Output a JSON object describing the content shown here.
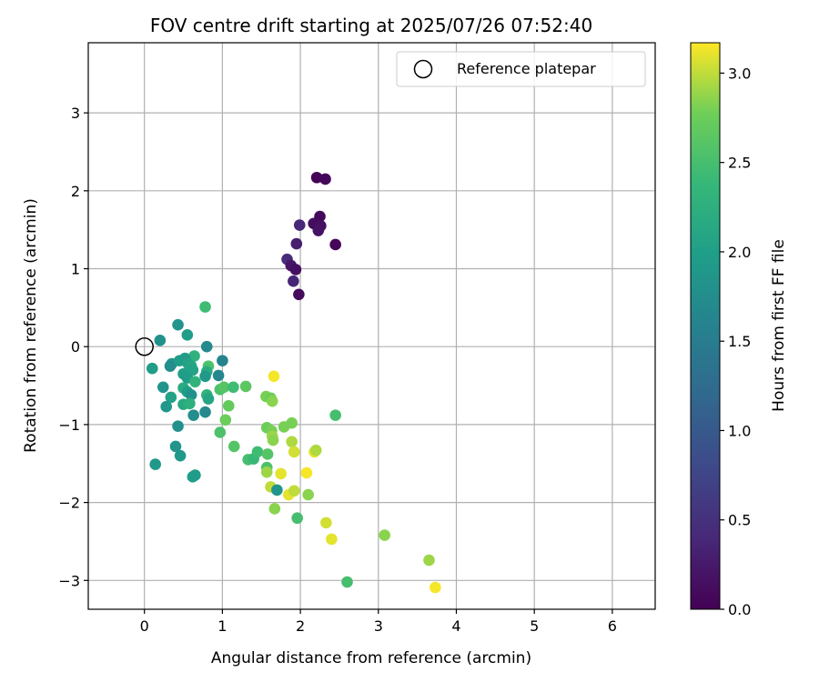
{
  "chart_data": {
    "type": "scatter",
    "title": "FOV centre drift starting at 2025/07/26 07:52:40",
    "xlabel": "Angular distance from reference (arcmin)",
    "ylabel": "Rotation from reference (arcmin)",
    "xlim": [
      -0.72,
      6.55
    ],
    "ylim": [
      -3.37,
      3.9
    ],
    "xticks": [
      0,
      1,
      2,
      3,
      4,
      5,
      6
    ],
    "yticks": [
      -3,
      -2,
      -1,
      0,
      1,
      2,
      3
    ],
    "grid": true,
    "legend": {
      "position": "top-right",
      "entries": [
        "Reference platepar"
      ]
    },
    "reference_point": {
      "x": 0,
      "y": 0
    },
    "colorbar": {
      "label": "Hours from first FF file",
      "colormap": "viridis",
      "range": [
        0.0,
        3.17
      ],
      "ticks": [
        0.0,
        0.5,
        1.0,
        1.5,
        2.0,
        2.5,
        3.0
      ]
    },
    "points": [
      {
        "x": 2.21,
        "y": 2.17,
        "c": 0.02
      },
      {
        "x": 2.32,
        "y": 2.15,
        "c": 0.06
      },
      {
        "x": 2.25,
        "y": 1.67,
        "c": 0.08
      },
      {
        "x": 2.17,
        "y": 1.58,
        "c": 0.12
      },
      {
        "x": 2.26,
        "y": 1.55,
        "c": 0.15
      },
      {
        "x": 2.23,
        "y": 1.49,
        "c": 0.18
      },
      {
        "x": 2.45,
        "y": 1.31,
        "c": 0.05
      },
      {
        "x": 1.99,
        "y": 1.56,
        "c": 0.4
      },
      {
        "x": 1.95,
        "y": 1.32,
        "c": 0.3
      },
      {
        "x": 1.83,
        "y": 1.12,
        "c": 0.45
      },
      {
        "x": 1.88,
        "y": 1.04,
        "c": 0.2
      },
      {
        "x": 1.94,
        "y": 0.99,
        "c": 0.15
      },
      {
        "x": 1.91,
        "y": 0.84,
        "c": 0.38
      },
      {
        "x": 1.98,
        "y": 0.67,
        "c": 0.1
      },
      {
        "x": 0.2,
        "y": 0.08,
        "c": 1.8
      },
      {
        "x": 0.1,
        "y": -0.28,
        "c": 1.95
      },
      {
        "x": 0.43,
        "y": 0.28,
        "c": 1.85
      },
      {
        "x": 0.55,
        "y": 0.15,
        "c": 1.95
      },
      {
        "x": 0.78,
        "y": 0.51,
        "c": 2.45
      },
      {
        "x": 0.64,
        "y": -0.12,
        "c": 2.3
      },
      {
        "x": 0.8,
        "y": 0.0,
        "c": 1.7
      },
      {
        "x": 0.35,
        "y": -0.22,
        "c": 1.9
      },
      {
        "x": 0.33,
        "y": -0.25,
        "c": 1.75
      },
      {
        "x": 0.45,
        "y": -0.18,
        "c": 2.0
      },
      {
        "x": 0.52,
        "y": -0.15,
        "c": 1.95
      },
      {
        "x": 0.56,
        "y": -0.22,
        "c": 2.05
      },
      {
        "x": 0.6,
        "y": -0.25,
        "c": 2.1
      },
      {
        "x": 0.5,
        "y": -0.35,
        "c": 2.0
      },
      {
        "x": 0.62,
        "y": -0.3,
        "c": 2.05
      },
      {
        "x": 0.55,
        "y": -0.4,
        "c": 1.95
      },
      {
        "x": 0.82,
        "y": -0.25,
        "c": 2.55
      },
      {
        "x": 0.8,
        "y": -0.32,
        "c": 2.2
      },
      {
        "x": 0.78,
        "y": -0.38,
        "c": 1.9
      },
      {
        "x": 1.0,
        "y": -0.18,
        "c": 1.6
      },
      {
        "x": 0.95,
        "y": -0.37,
        "c": 1.65
      },
      {
        "x": 0.65,
        "y": -0.45,
        "c": 2.3
      },
      {
        "x": 0.24,
        "y": -0.52,
        "c": 1.85
      },
      {
        "x": 0.5,
        "y": -0.53,
        "c": 2.2
      },
      {
        "x": 0.55,
        "y": -0.58,
        "c": 2.0
      },
      {
        "x": 0.6,
        "y": -0.62,
        "c": 1.8
      },
      {
        "x": 0.34,
        "y": -0.65,
        "c": 2.05
      },
      {
        "x": 0.28,
        "y": -0.77,
        "c": 1.9
      },
      {
        "x": 0.5,
        "y": -0.74,
        "c": 2.15
      },
      {
        "x": 0.58,
        "y": -0.73,
        "c": 2.25
      },
      {
        "x": 0.8,
        "y": -0.62,
        "c": 2.3
      },
      {
        "x": 0.82,
        "y": -0.67,
        "c": 2.1
      },
      {
        "x": 0.78,
        "y": -0.84,
        "c": 1.7
      },
      {
        "x": 0.63,
        "y": -0.88,
        "c": 1.75
      },
      {
        "x": 0.43,
        "y": -1.02,
        "c": 1.8
      },
      {
        "x": 0.4,
        "y": -1.28,
        "c": 1.85
      },
      {
        "x": 0.46,
        "y": -1.4,
        "c": 1.9
      },
      {
        "x": 0.14,
        "y": -1.51,
        "c": 1.9
      },
      {
        "x": 0.62,
        "y": -1.67,
        "c": 2.0
      },
      {
        "x": 0.65,
        "y": -1.65,
        "c": 1.95
      },
      {
        "x": 0.97,
        "y": -0.55,
        "c": 2.55
      },
      {
        "x": 1.02,
        "y": -0.52,
        "c": 2.6
      },
      {
        "x": 1.14,
        "y": -0.52,
        "c": 2.45
      },
      {
        "x": 1.3,
        "y": -0.51,
        "c": 2.65
      },
      {
        "x": 1.08,
        "y": -0.76,
        "c": 2.7
      },
      {
        "x": 1.04,
        "y": -0.94,
        "c": 2.75
      },
      {
        "x": 0.97,
        "y": -1.1,
        "c": 2.55
      },
      {
        "x": 1.15,
        "y": -1.28,
        "c": 2.6
      },
      {
        "x": 1.33,
        "y": -1.45,
        "c": 2.5
      },
      {
        "x": 1.4,
        "y": -1.44,
        "c": 2.4
      },
      {
        "x": 1.45,
        "y": -1.35,
        "c": 2.45
      },
      {
        "x": 1.56,
        "y": -0.64,
        "c": 2.8
      },
      {
        "x": 1.62,
        "y": -0.66,
        "c": 2.75
      },
      {
        "x": 1.64,
        "y": -0.7,
        "c": 2.85
      },
      {
        "x": 1.66,
        "y": -0.38,
        "c": 3.15
      },
      {
        "x": 1.57,
        "y": -1.04,
        "c": 2.75
      },
      {
        "x": 1.63,
        "y": -1.08,
        "c": 2.8
      },
      {
        "x": 1.64,
        "y": -1.15,
        "c": 2.9
      },
      {
        "x": 1.65,
        "y": -1.2,
        "c": 2.85
      },
      {
        "x": 1.79,
        "y": -1.03,
        "c": 2.8
      },
      {
        "x": 1.89,
        "y": -0.98,
        "c": 2.8
      },
      {
        "x": 1.89,
        "y": -1.22,
        "c": 2.95
      },
      {
        "x": 1.92,
        "y": -1.35,
        "c": 3.05
      },
      {
        "x": 1.58,
        "y": -1.38,
        "c": 2.6
      },
      {
        "x": 1.57,
        "y": -1.55,
        "c": 2.55
      },
      {
        "x": 1.57,
        "y": -1.61,
        "c": 2.9
      },
      {
        "x": 1.62,
        "y": -1.8,
        "c": 3.0
      },
      {
        "x": 1.7,
        "y": -1.84,
        "c": 1.85
      },
      {
        "x": 1.75,
        "y": -1.63,
        "c": 3.1
      },
      {
        "x": 1.85,
        "y": -1.9,
        "c": 3.1
      },
      {
        "x": 1.92,
        "y": -1.85,
        "c": 3.0
      },
      {
        "x": 2.08,
        "y": -1.62,
        "c": 3.15
      },
      {
        "x": 2.18,
        "y": -1.35,
        "c": 3.1
      },
      {
        "x": 2.2,
        "y": -1.33,
        "c": 2.95
      },
      {
        "x": 2.1,
        "y": -1.9,
        "c": 2.85
      },
      {
        "x": 1.67,
        "y": -2.08,
        "c": 2.85
      },
      {
        "x": 1.96,
        "y": -2.2,
        "c": 2.5
      },
      {
        "x": 2.33,
        "y": -2.26,
        "c": 3.05
      },
      {
        "x": 2.4,
        "y": -2.47,
        "c": 3.1
      },
      {
        "x": 2.45,
        "y": -0.88,
        "c": 2.5
      },
      {
        "x": 2.6,
        "y": -3.02,
        "c": 2.5
      },
      {
        "x": 3.08,
        "y": -2.42,
        "c": 2.85
      },
      {
        "x": 3.65,
        "y": -2.74,
        "c": 2.9
      },
      {
        "x": 3.73,
        "y": -3.09,
        "c": 3.15
      }
    ]
  }
}
